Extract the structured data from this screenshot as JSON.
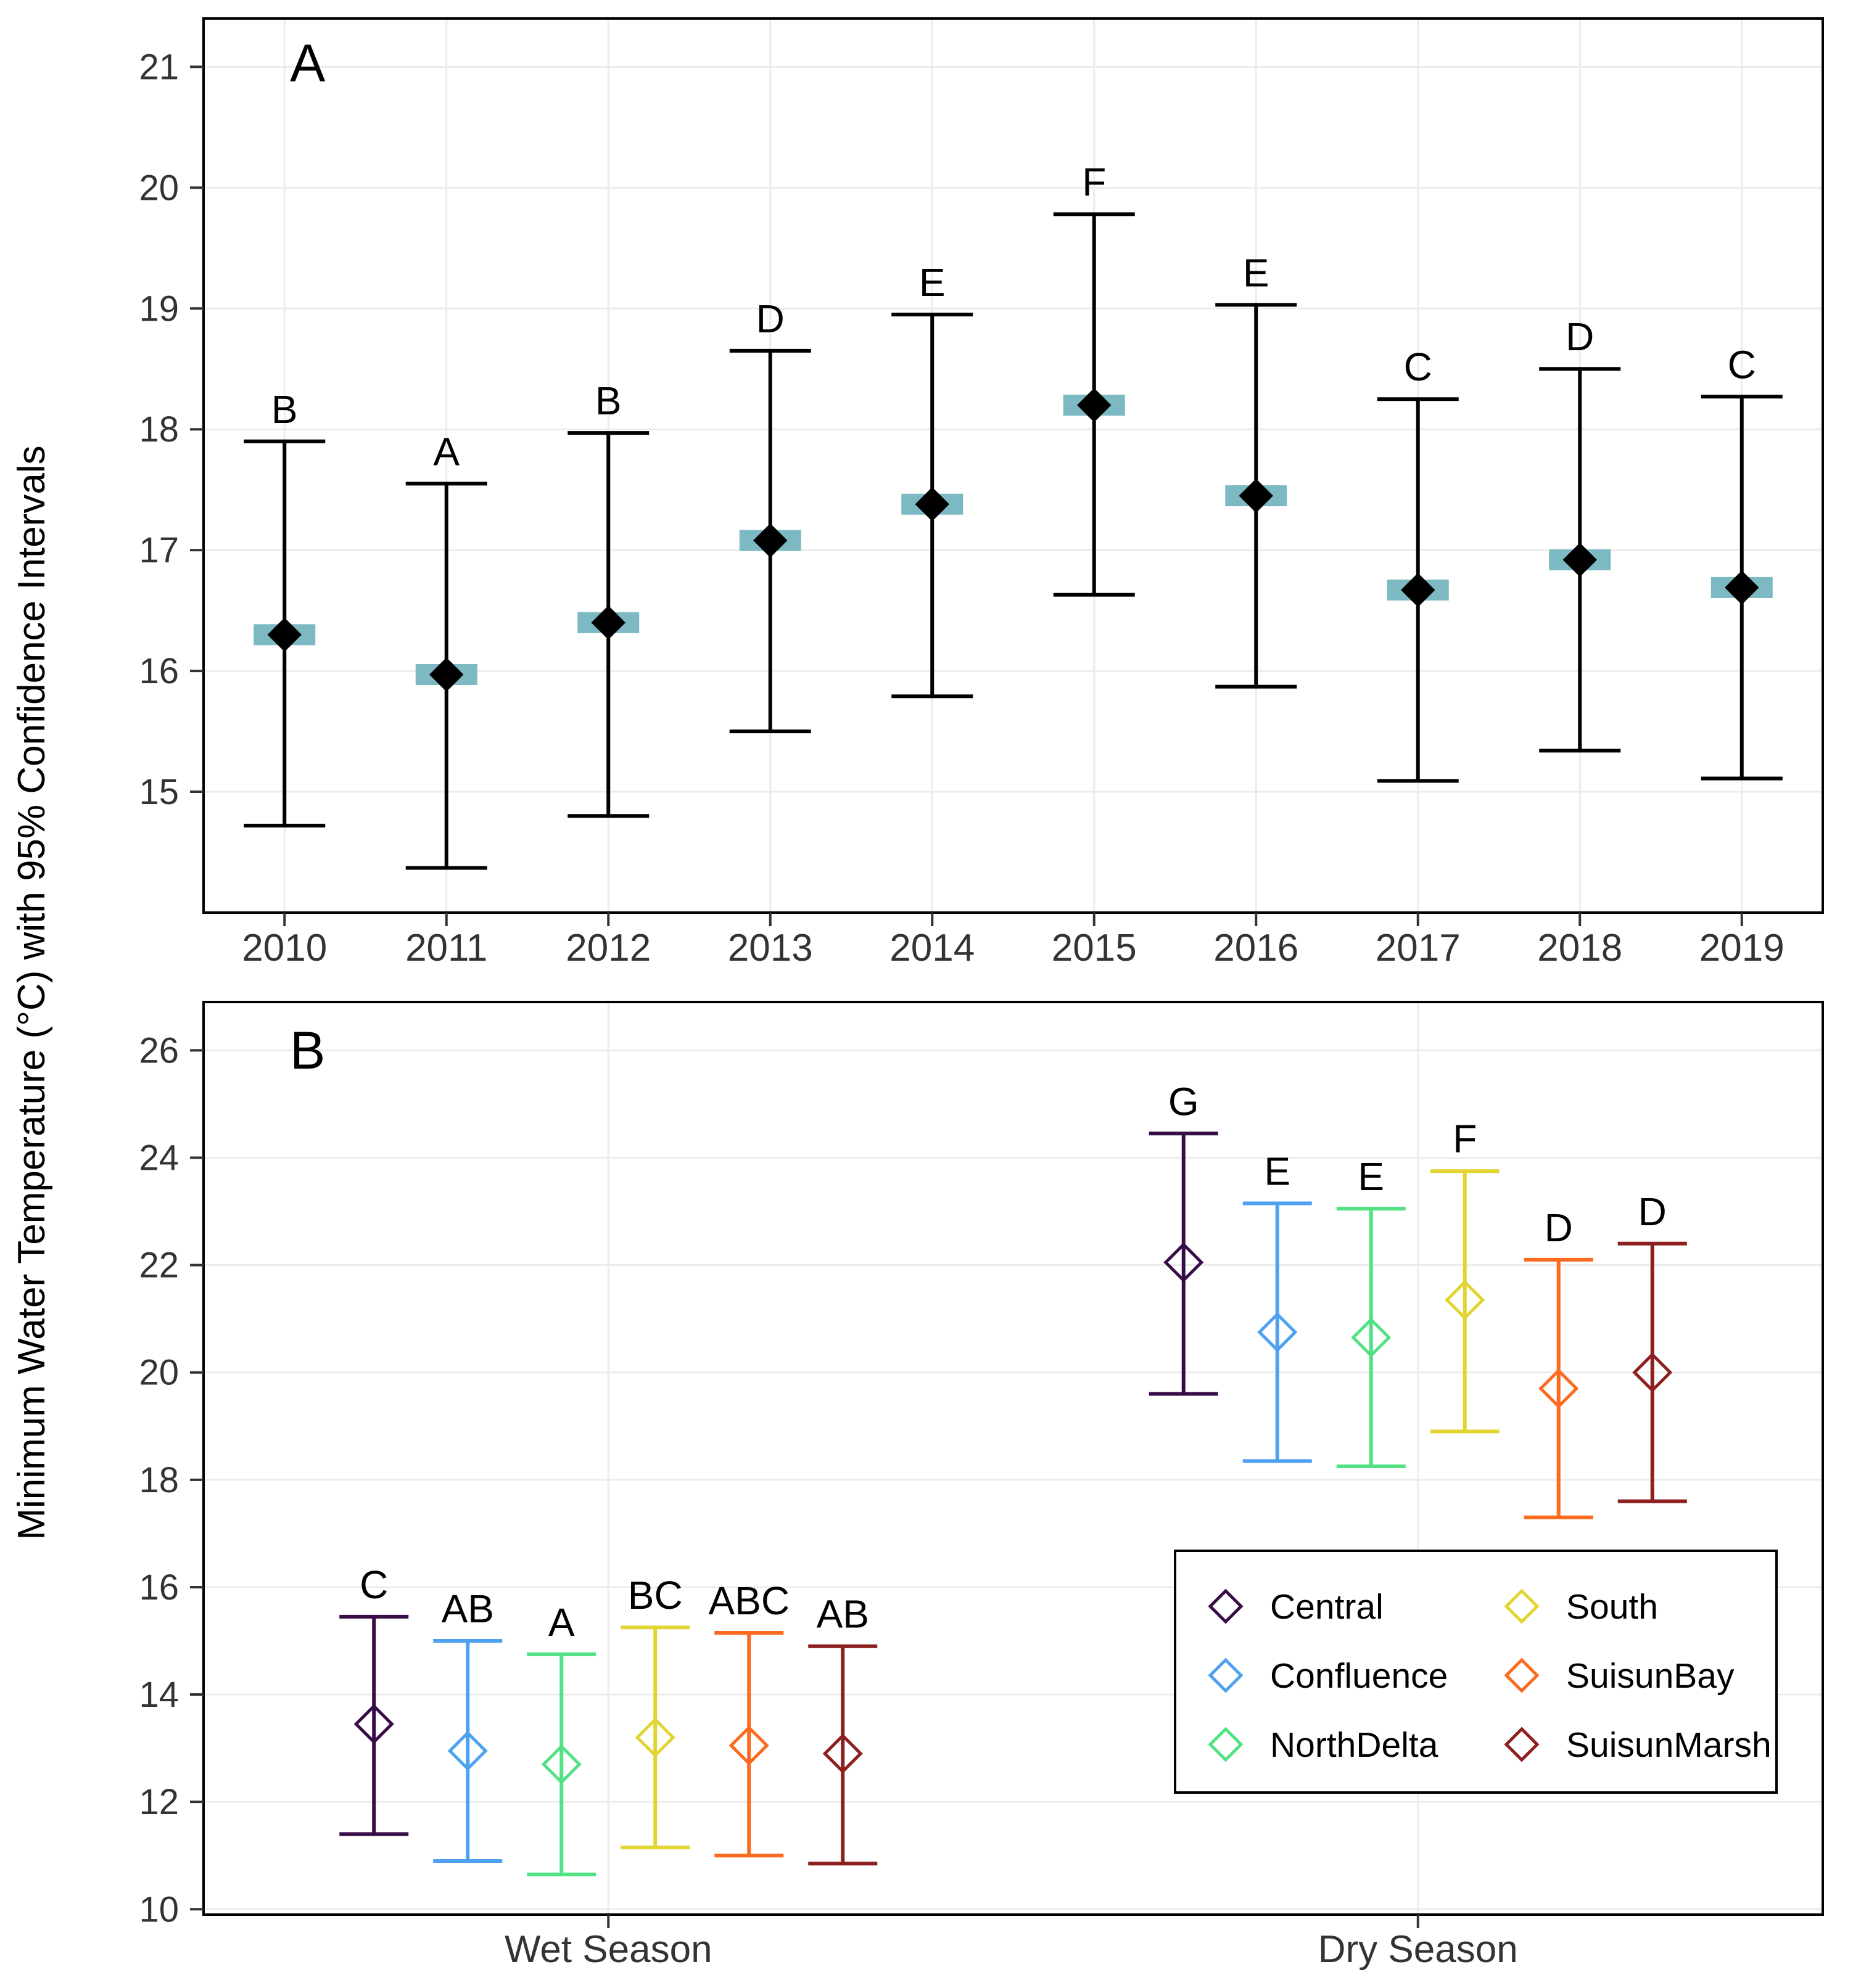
{
  "figure": {
    "ylabel": "Minimum Water Temperature (°C) with 95% Confidence Intervals",
    "background": "#ffffff",
    "text_color": "#333333",
    "grid_color": "#ececec",
    "border_color": "#000000"
  },
  "chart_data": [
    {
      "type": "scatter",
      "panel": "A",
      "x_categories": [
        "2010",
        "2011",
        "2012",
        "2013",
        "2014",
        "2015",
        "2016",
        "2017",
        "2018",
        "2019"
      ],
      "ylim": [
        14.0,
        21.4
      ],
      "yticks": [
        15,
        16,
        17,
        18,
        19,
        20,
        21
      ],
      "grid": true,
      "marker": "filled-diamond",
      "marker_color": "#000000",
      "errorbar_color": "#000000",
      "crossbar_color": "#7db9c2",
      "points": [
        {
          "x": "2010",
          "mean": 16.3,
          "lower": 14.72,
          "upper": 17.9,
          "letter": "B"
        },
        {
          "x": "2011",
          "mean": 15.97,
          "lower": 14.37,
          "upper": 17.55,
          "letter": "A"
        },
        {
          "x": "2012",
          "mean": 16.4,
          "lower": 14.8,
          "upper": 17.97,
          "letter": "B"
        },
        {
          "x": "2013",
          "mean": 17.08,
          "lower": 15.5,
          "upper": 18.65,
          "letter": "D"
        },
        {
          "x": "2014",
          "mean": 17.38,
          "lower": 15.79,
          "upper": 18.95,
          "letter": "E"
        },
        {
          "x": "2015",
          "mean": 18.2,
          "lower": 16.63,
          "upper": 19.78,
          "letter": "F"
        },
        {
          "x": "2016",
          "mean": 17.45,
          "lower": 15.87,
          "upper": 19.03,
          "letter": "E"
        },
        {
          "x": "2017",
          "mean": 16.67,
          "lower": 15.09,
          "upper": 18.25,
          "letter": "C"
        },
        {
          "x": "2018",
          "mean": 16.92,
          "lower": 15.34,
          "upper": 18.5,
          "letter": "D"
        },
        {
          "x": "2019",
          "mean": 16.69,
          "lower": 15.11,
          "upper": 18.27,
          "letter": "C"
        }
      ]
    },
    {
      "type": "scatter",
      "panel": "B",
      "x_categories": [
        "Wet Season",
        "Dry Season"
      ],
      "ylim": [
        9.9,
        26.9
      ],
      "yticks": [
        10,
        12,
        14,
        16,
        18,
        20,
        22,
        24,
        26
      ],
      "grid": true,
      "marker": "open-diamond",
      "series": [
        {
          "name": "Central",
          "color": "#380d47",
          "values": [
            {
              "x": "Wet Season",
              "mean": 13.45,
              "lower": 11.4,
              "upper": 15.45,
              "letter": "C"
            },
            {
              "x": "Dry Season",
              "mean": 22.05,
              "lower": 19.6,
              "upper": 24.45,
              "letter": "G"
            }
          ]
        },
        {
          "name": "Confluence",
          "color": "#4da1f0",
          "values": [
            {
              "x": "Wet Season",
              "mean": 12.95,
              "lower": 10.9,
              "upper": 15.0,
              "letter": "AB"
            },
            {
              "x": "Dry Season",
              "mean": 20.75,
              "lower": 18.35,
              "upper": 23.15,
              "letter": "E"
            }
          ]
        },
        {
          "name": "NorthDelta",
          "color": "#52e283",
          "values": [
            {
              "x": "Wet Season",
              "mean": 12.7,
              "lower": 10.65,
              "upper": 14.75,
              "letter": "A"
            },
            {
              "x": "Dry Season",
              "mean": 20.65,
              "lower": 18.25,
              "upper": 23.05,
              "letter": "E"
            }
          ]
        },
        {
          "name": "South",
          "color": "#e2d531",
          "values": [
            {
              "x": "Wet Season",
              "mean": 13.2,
              "lower": 11.15,
              "upper": 15.25,
              "letter": "BC"
            },
            {
              "x": "Dry Season",
              "mean": 21.35,
              "lower": 18.9,
              "upper": 23.75,
              "letter": "F"
            }
          ]
        },
        {
          "name": "SuisunBay",
          "color": "#fb6a1e",
          "values": [
            {
              "x": "Wet Season",
              "mean": 13.05,
              "lower": 11.0,
              "upper": 15.15,
              "letter": "ABC"
            },
            {
              "x": "Dry Season",
              "mean": 19.7,
              "lower": 17.3,
              "upper": 22.1,
              "letter": "D"
            }
          ]
        },
        {
          "name": "SuisunMarsh",
          "color": "#8e1f1f",
          "values": [
            {
              "x": "Wet Season",
              "mean": 12.9,
              "lower": 10.85,
              "upper": 14.9,
              "letter": "AB"
            },
            {
              "x": "Dry Season",
              "mean": 20.0,
              "lower": 17.6,
              "upper": 22.4,
              "letter": "D"
            }
          ]
        }
      ],
      "legend": {
        "position": "bottom-right",
        "columns": [
          [
            "Central",
            "Confluence",
            "NorthDelta"
          ],
          [
            "South",
            "SuisunBay",
            "SuisunMarsh"
          ]
        ]
      }
    }
  ]
}
